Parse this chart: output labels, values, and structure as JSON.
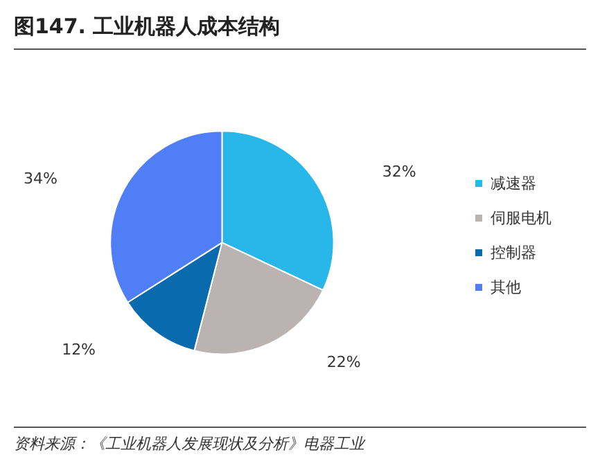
{
  "chart_data": {
    "type": "pie",
    "title": "图147. 工业机器人成本结构",
    "categories": [
      "减速器",
      "伺服电机",
      "控制器",
      "其他"
    ],
    "values": [
      32,
      22,
      12,
      34
    ],
    "value_labels": [
      "32%",
      "22%",
      "12%",
      "34%"
    ],
    "colors": [
      "#29b6e8",
      "#bbb3b1",
      "#0a6aae",
      "#4f7ef6"
    ],
    "legend": "right",
    "annotations": [
      "资料来源：《工业机器人发展现状及分析》电器工业"
    ]
  }
}
